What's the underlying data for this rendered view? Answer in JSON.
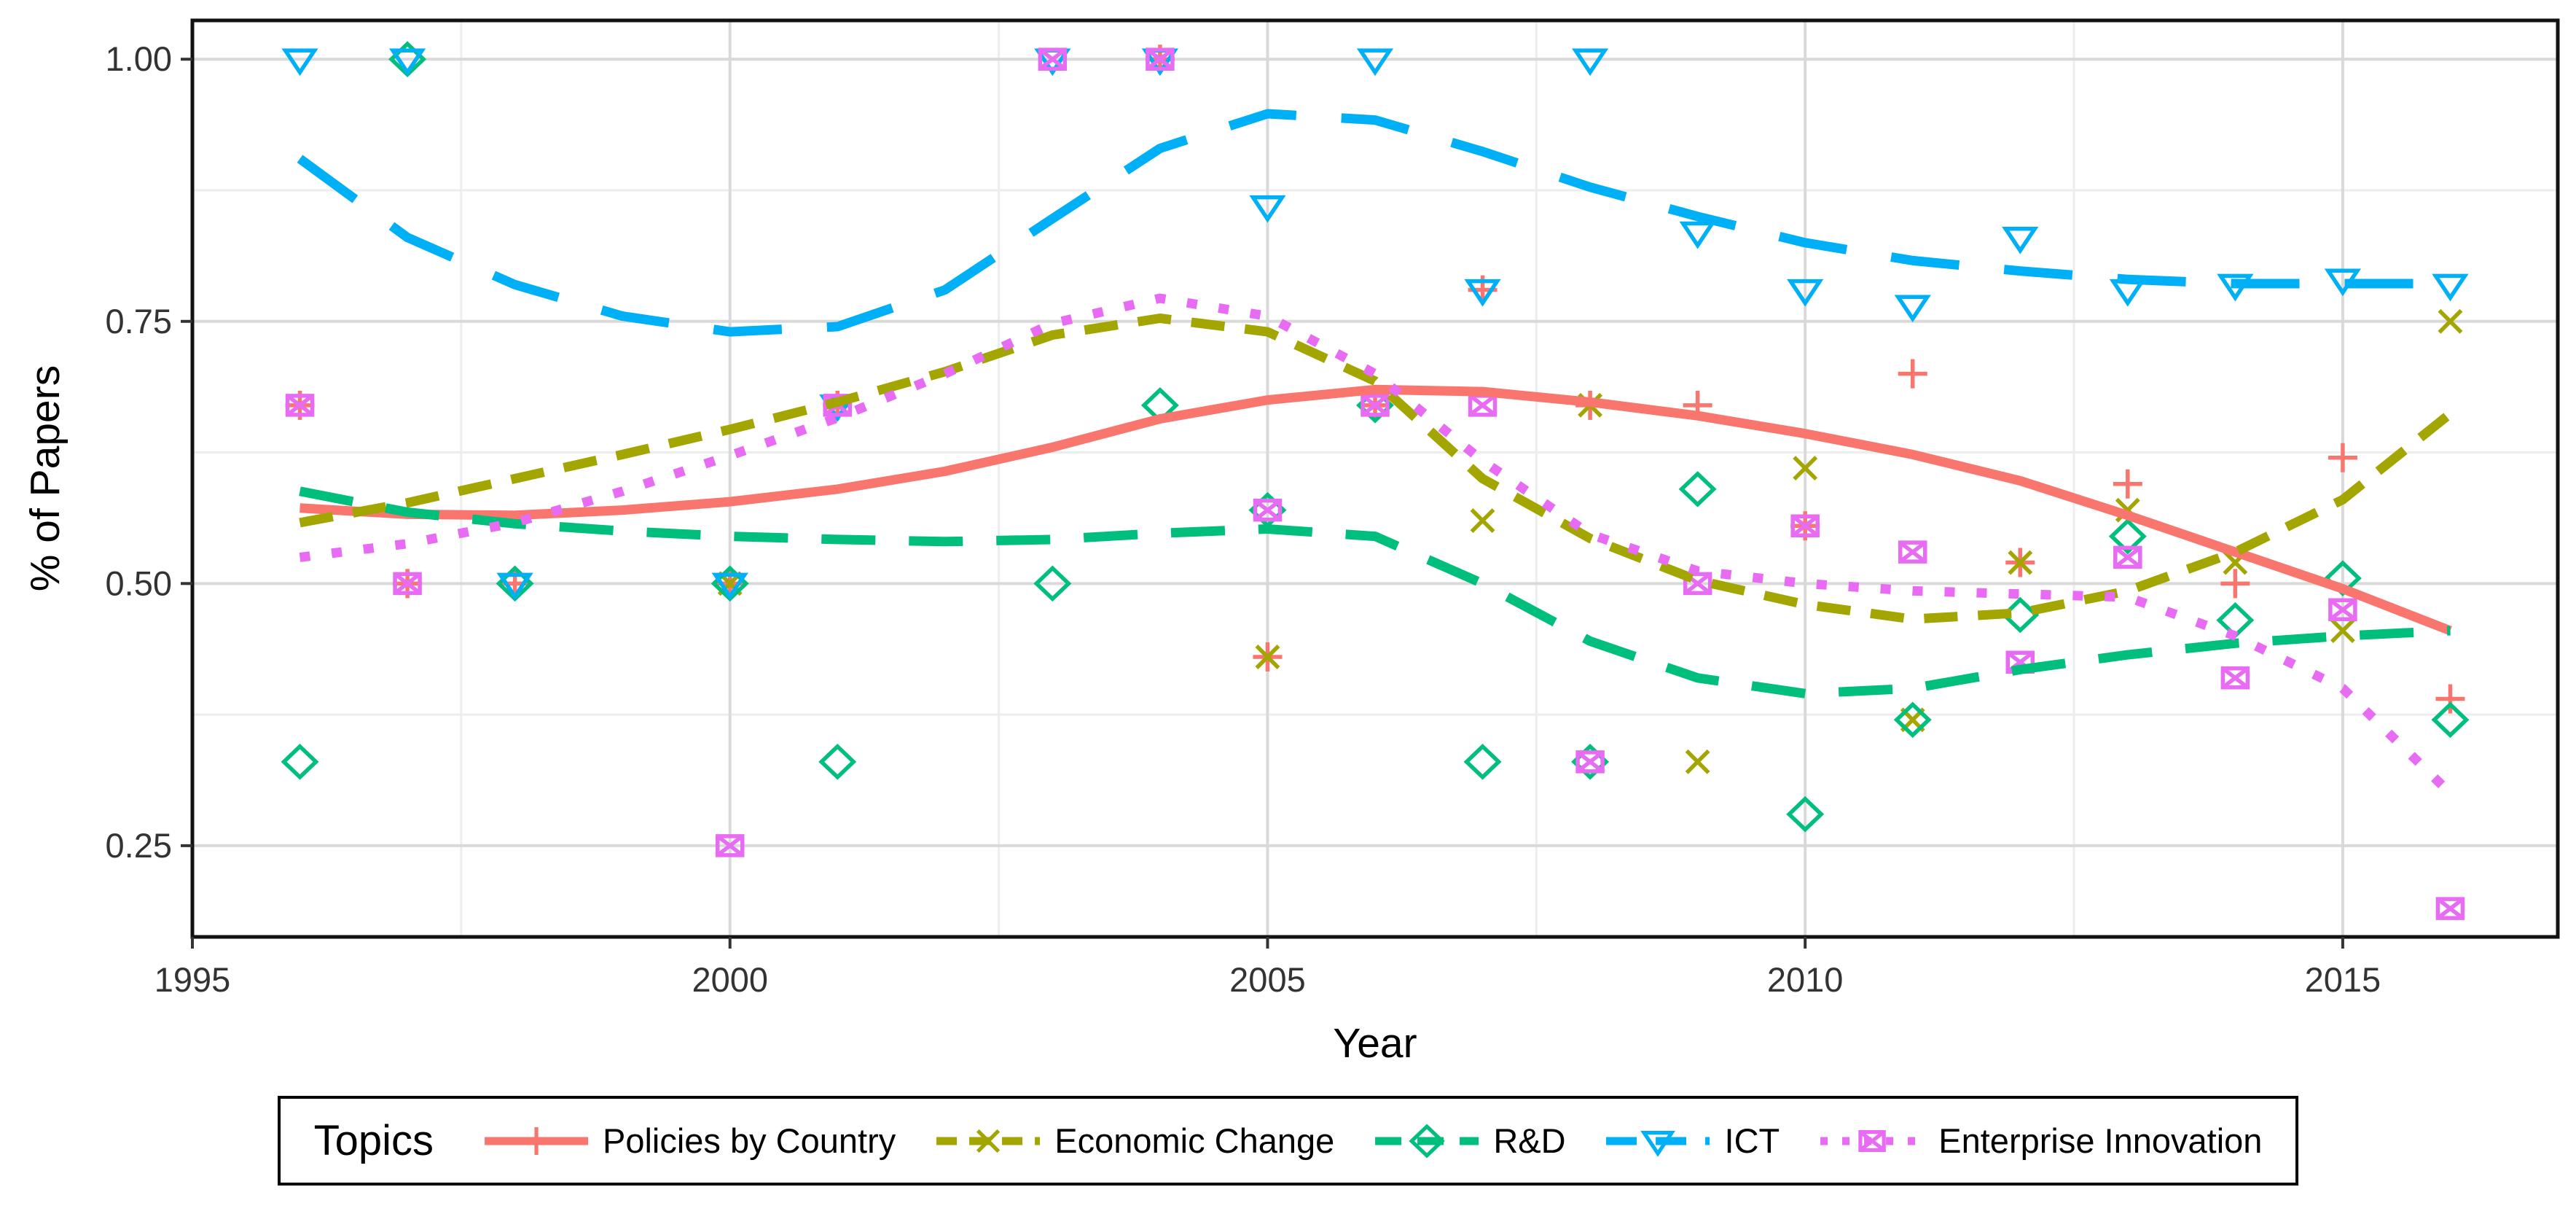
{
  "chart_data": {
    "type": "scatter",
    "title": "",
    "xlabel": "Year",
    "ylabel": "% of Papers",
    "xlim": [
      1995,
      2017
    ],
    "ylim": [
      0.163,
      1.037
    ],
    "grid": "on",
    "legend_title": "Topics",
    "legend_position": "bottom",
    "x_ticks": [
      {
        "value": 1995,
        "label": "1995"
      },
      {
        "value": 2000,
        "label": "2000"
      },
      {
        "value": 2005,
        "label": "2005"
      },
      {
        "value": 2010,
        "label": "2010"
      },
      {
        "value": 2015,
        "label": "2015"
      }
    ],
    "y_ticks": [
      {
        "value": 0.25,
        "label": "0.25"
      },
      {
        "value": 0.5,
        "label": "0.50"
      },
      {
        "value": 0.75,
        "label": "0.75"
      },
      {
        "value": 1.0,
        "label": "1.00"
      }
    ],
    "x_minor": [
      1997.5,
      2002.5,
      2007.5,
      2012.5
    ],
    "y_minor": [
      0.375,
      0.625,
      0.875
    ],
    "colors": {
      "grid_major": "#d9d9d9",
      "grid_minor": "#ededed",
      "panel_border": "#121212",
      "tick_text": "#333333",
      "axis_title": "#000000",
      "background": "#ffffff"
    },
    "series": [
      {
        "name": "Policies by Country",
        "color": "#F8766D",
        "marker": "plus",
        "line_style": "solid",
        "points": [
          [
            1996,
            0.67
          ],
          [
            1997,
            0.5
          ],
          [
            1998,
            0.5
          ],
          [
            2000,
            0.5
          ],
          [
            2001,
            0.67
          ],
          [
            2004,
            1.0
          ],
          [
            2005,
            0.43
          ],
          [
            2006,
            0.67
          ],
          [
            2007,
            0.78
          ],
          [
            2008,
            0.67
          ],
          [
            2009,
            0.67
          ],
          [
            2010,
            0.555
          ],
          [
            2011,
            0.7
          ],
          [
            2012,
            0.52
          ],
          [
            2013,
            0.595
          ],
          [
            2014,
            0.5
          ],
          [
            2015,
            0.62
          ],
          [
            2016,
            0.39
          ]
        ],
        "smooth": [
          [
            1996,
            0.572
          ],
          [
            1997,
            0.566
          ],
          [
            1998,
            0.565
          ],
          [
            1999,
            0.57
          ],
          [
            2000,
            0.578
          ],
          [
            2001,
            0.59
          ],
          [
            2002,
            0.607
          ],
          [
            2003,
            0.63
          ],
          [
            2004,
            0.657
          ],
          [
            2005,
            0.675
          ],
          [
            2006,
            0.685
          ],
          [
            2007,
            0.683
          ],
          [
            2008,
            0.673
          ],
          [
            2009,
            0.66
          ],
          [
            2010,
            0.643
          ],
          [
            2011,
            0.623
          ],
          [
            2012,
            0.598
          ],
          [
            2013,
            0.565
          ],
          [
            2014,
            0.53
          ],
          [
            2015,
            0.495
          ],
          [
            2016,
            0.455
          ]
        ]
      },
      {
        "name": "Economic Change",
        "color": "#A3A500",
        "marker": "x",
        "line_style": "dashed",
        "points": [
          [
            2000,
            0.5
          ],
          [
            2005,
            0.43
          ],
          [
            2007,
            0.56
          ],
          [
            2008,
            0.67
          ],
          [
            2009,
            0.33
          ],
          [
            2010,
            0.61
          ],
          [
            2011,
            0.37
          ],
          [
            2012,
            0.52
          ],
          [
            2013,
            0.57
          ],
          [
            2014,
            0.52
          ],
          [
            2015,
            0.455
          ],
          [
            2016,
            0.75
          ]
        ],
        "smooth": [
          [
            1996,
            0.558
          ],
          [
            1997,
            0.577
          ],
          [
            1998,
            0.6
          ],
          [
            1999,
            0.623
          ],
          [
            2000,
            0.647
          ],
          [
            2001,
            0.673
          ],
          [
            2002,
            0.702
          ],
          [
            2003,
            0.737
          ],
          [
            2004,
            0.753
          ],
          [
            2005,
            0.74
          ],
          [
            2006,
            0.693
          ],
          [
            2007,
            0.6
          ],
          [
            2008,
            0.543
          ],
          [
            2009,
            0.503
          ],
          [
            2010,
            0.48
          ],
          [
            2011,
            0.466
          ],
          [
            2012,
            0.472
          ],
          [
            2013,
            0.493
          ],
          [
            2014,
            0.53
          ],
          [
            2015,
            0.58
          ],
          [
            2016,
            0.662
          ]
        ]
      },
      {
        "name": "R&D",
        "color": "#00BF7D",
        "marker": "diamond",
        "line_style": "longdash",
        "points": [
          [
            1996,
            0.33
          ],
          [
            1997,
            1.0
          ],
          [
            1998,
            0.5
          ],
          [
            2000,
            0.5
          ],
          [
            2001,
            0.33
          ],
          [
            2003,
            0.5
          ],
          [
            2004,
            0.67
          ],
          [
            2005,
            0.57
          ],
          [
            2006,
            0.67
          ],
          [
            2007,
            0.33
          ],
          [
            2008,
            0.33
          ],
          [
            2009,
            0.59
          ],
          [
            2010,
            0.28
          ],
          [
            2011,
            0.37
          ],
          [
            2012,
            0.47
          ],
          [
            2013,
            0.545
          ],
          [
            2014,
            0.465
          ],
          [
            2015,
            0.505
          ],
          [
            2016,
            0.37
          ]
        ],
        "smooth": [
          [
            1996,
            0.588
          ],
          [
            1997,
            0.568
          ],
          [
            1998,
            0.557
          ],
          [
            1999,
            0.55
          ],
          [
            2000,
            0.545
          ],
          [
            2001,
            0.542
          ],
          [
            2002,
            0.54
          ],
          [
            2003,
            0.542
          ],
          [
            2004,
            0.548
          ],
          [
            2005,
            0.552
          ],
          [
            2006,
            0.545
          ],
          [
            2007,
            0.5
          ],
          [
            2008,
            0.445
          ],
          [
            2009,
            0.41
          ],
          [
            2010,
            0.395
          ],
          [
            2011,
            0.4
          ],
          [
            2012,
            0.418
          ],
          [
            2013,
            0.432
          ],
          [
            2014,
            0.443
          ],
          [
            2015,
            0.45
          ],
          [
            2016,
            0.455
          ]
        ]
      },
      {
        "name": "ICT",
        "color": "#00B0F6",
        "marker": "triangle-down",
        "line_style": "longdashxl",
        "points": [
          [
            1996,
            1.0
          ],
          [
            1997,
            1.0
          ],
          [
            1998,
            0.5
          ],
          [
            2000,
            0.5
          ],
          [
            2001,
            0.67
          ],
          [
            2003,
            1.0
          ],
          [
            2004,
            1.0
          ],
          [
            2005,
            0.86
          ],
          [
            2006,
            1.0
          ],
          [
            2007,
            0.78
          ],
          [
            2008,
            1.0
          ],
          [
            2009,
            0.835
          ],
          [
            2010,
            0.78
          ],
          [
            2011,
            0.765
          ],
          [
            2012,
            0.83
          ],
          [
            2013,
            0.78
          ],
          [
            2014,
            0.785
          ],
          [
            2015,
            0.79
          ],
          [
            2016,
            0.785
          ]
        ],
        "smooth": [
          [
            1996,
            0.905
          ],
          [
            1997,
            0.83
          ],
          [
            1998,
            0.785
          ],
          [
            1999,
            0.755
          ],
          [
            2000,
            0.74
          ],
          [
            2001,
            0.745
          ],
          [
            2002,
            0.78
          ],
          [
            2003,
            0.848
          ],
          [
            2004,
            0.915
          ],
          [
            2005,
            0.948
          ],
          [
            2006,
            0.942
          ],
          [
            2007,
            0.912
          ],
          [
            2008,
            0.878
          ],
          [
            2009,
            0.85
          ],
          [
            2010,
            0.825
          ],
          [
            2011,
            0.808
          ],
          [
            2012,
            0.798
          ],
          [
            2013,
            0.79
          ],
          [
            2014,
            0.786
          ],
          [
            2015,
            0.786
          ],
          [
            2016,
            0.786
          ]
        ]
      },
      {
        "name": "Enterprise Innovation",
        "color": "#E76BF3",
        "marker": "box-x",
        "line_style": "dotted",
        "points": [
          [
            1996,
            0.67
          ],
          [
            1997,
            0.5
          ],
          [
            2000,
            0.25
          ],
          [
            2001,
            0.67
          ],
          [
            2003,
            1.0
          ],
          [
            2004,
            1.0
          ],
          [
            2005,
            0.57
          ],
          [
            2006,
            0.67
          ],
          [
            2007,
            0.67
          ],
          [
            2008,
            0.33
          ],
          [
            2009,
            0.5
          ],
          [
            2010,
            0.555
          ],
          [
            2011,
            0.53
          ],
          [
            2012,
            0.425
          ],
          [
            2013,
            0.525
          ],
          [
            2014,
            0.41
          ],
          [
            2015,
            0.475
          ],
          [
            2016,
            0.19
          ]
        ],
        "smooth": [
          [
            1996,
            0.525
          ],
          [
            1997,
            0.538
          ],
          [
            1998,
            0.558
          ],
          [
            1999,
            0.588
          ],
          [
            2000,
            0.622
          ],
          [
            2001,
            0.658
          ],
          [
            2002,
            0.7
          ],
          [
            2003,
            0.748
          ],
          [
            2004,
            0.772
          ],
          [
            2005,
            0.755
          ],
          [
            2006,
            0.7
          ],
          [
            2007,
            0.617
          ],
          [
            2008,
            0.547
          ],
          [
            2009,
            0.512
          ],
          [
            2010,
            0.5
          ],
          [
            2011,
            0.493
          ],
          [
            2012,
            0.49
          ],
          [
            2013,
            0.487
          ],
          [
            2014,
            0.45
          ],
          [
            2015,
            0.4
          ],
          [
            2016,
            0.3
          ]
        ]
      }
    ]
  }
}
